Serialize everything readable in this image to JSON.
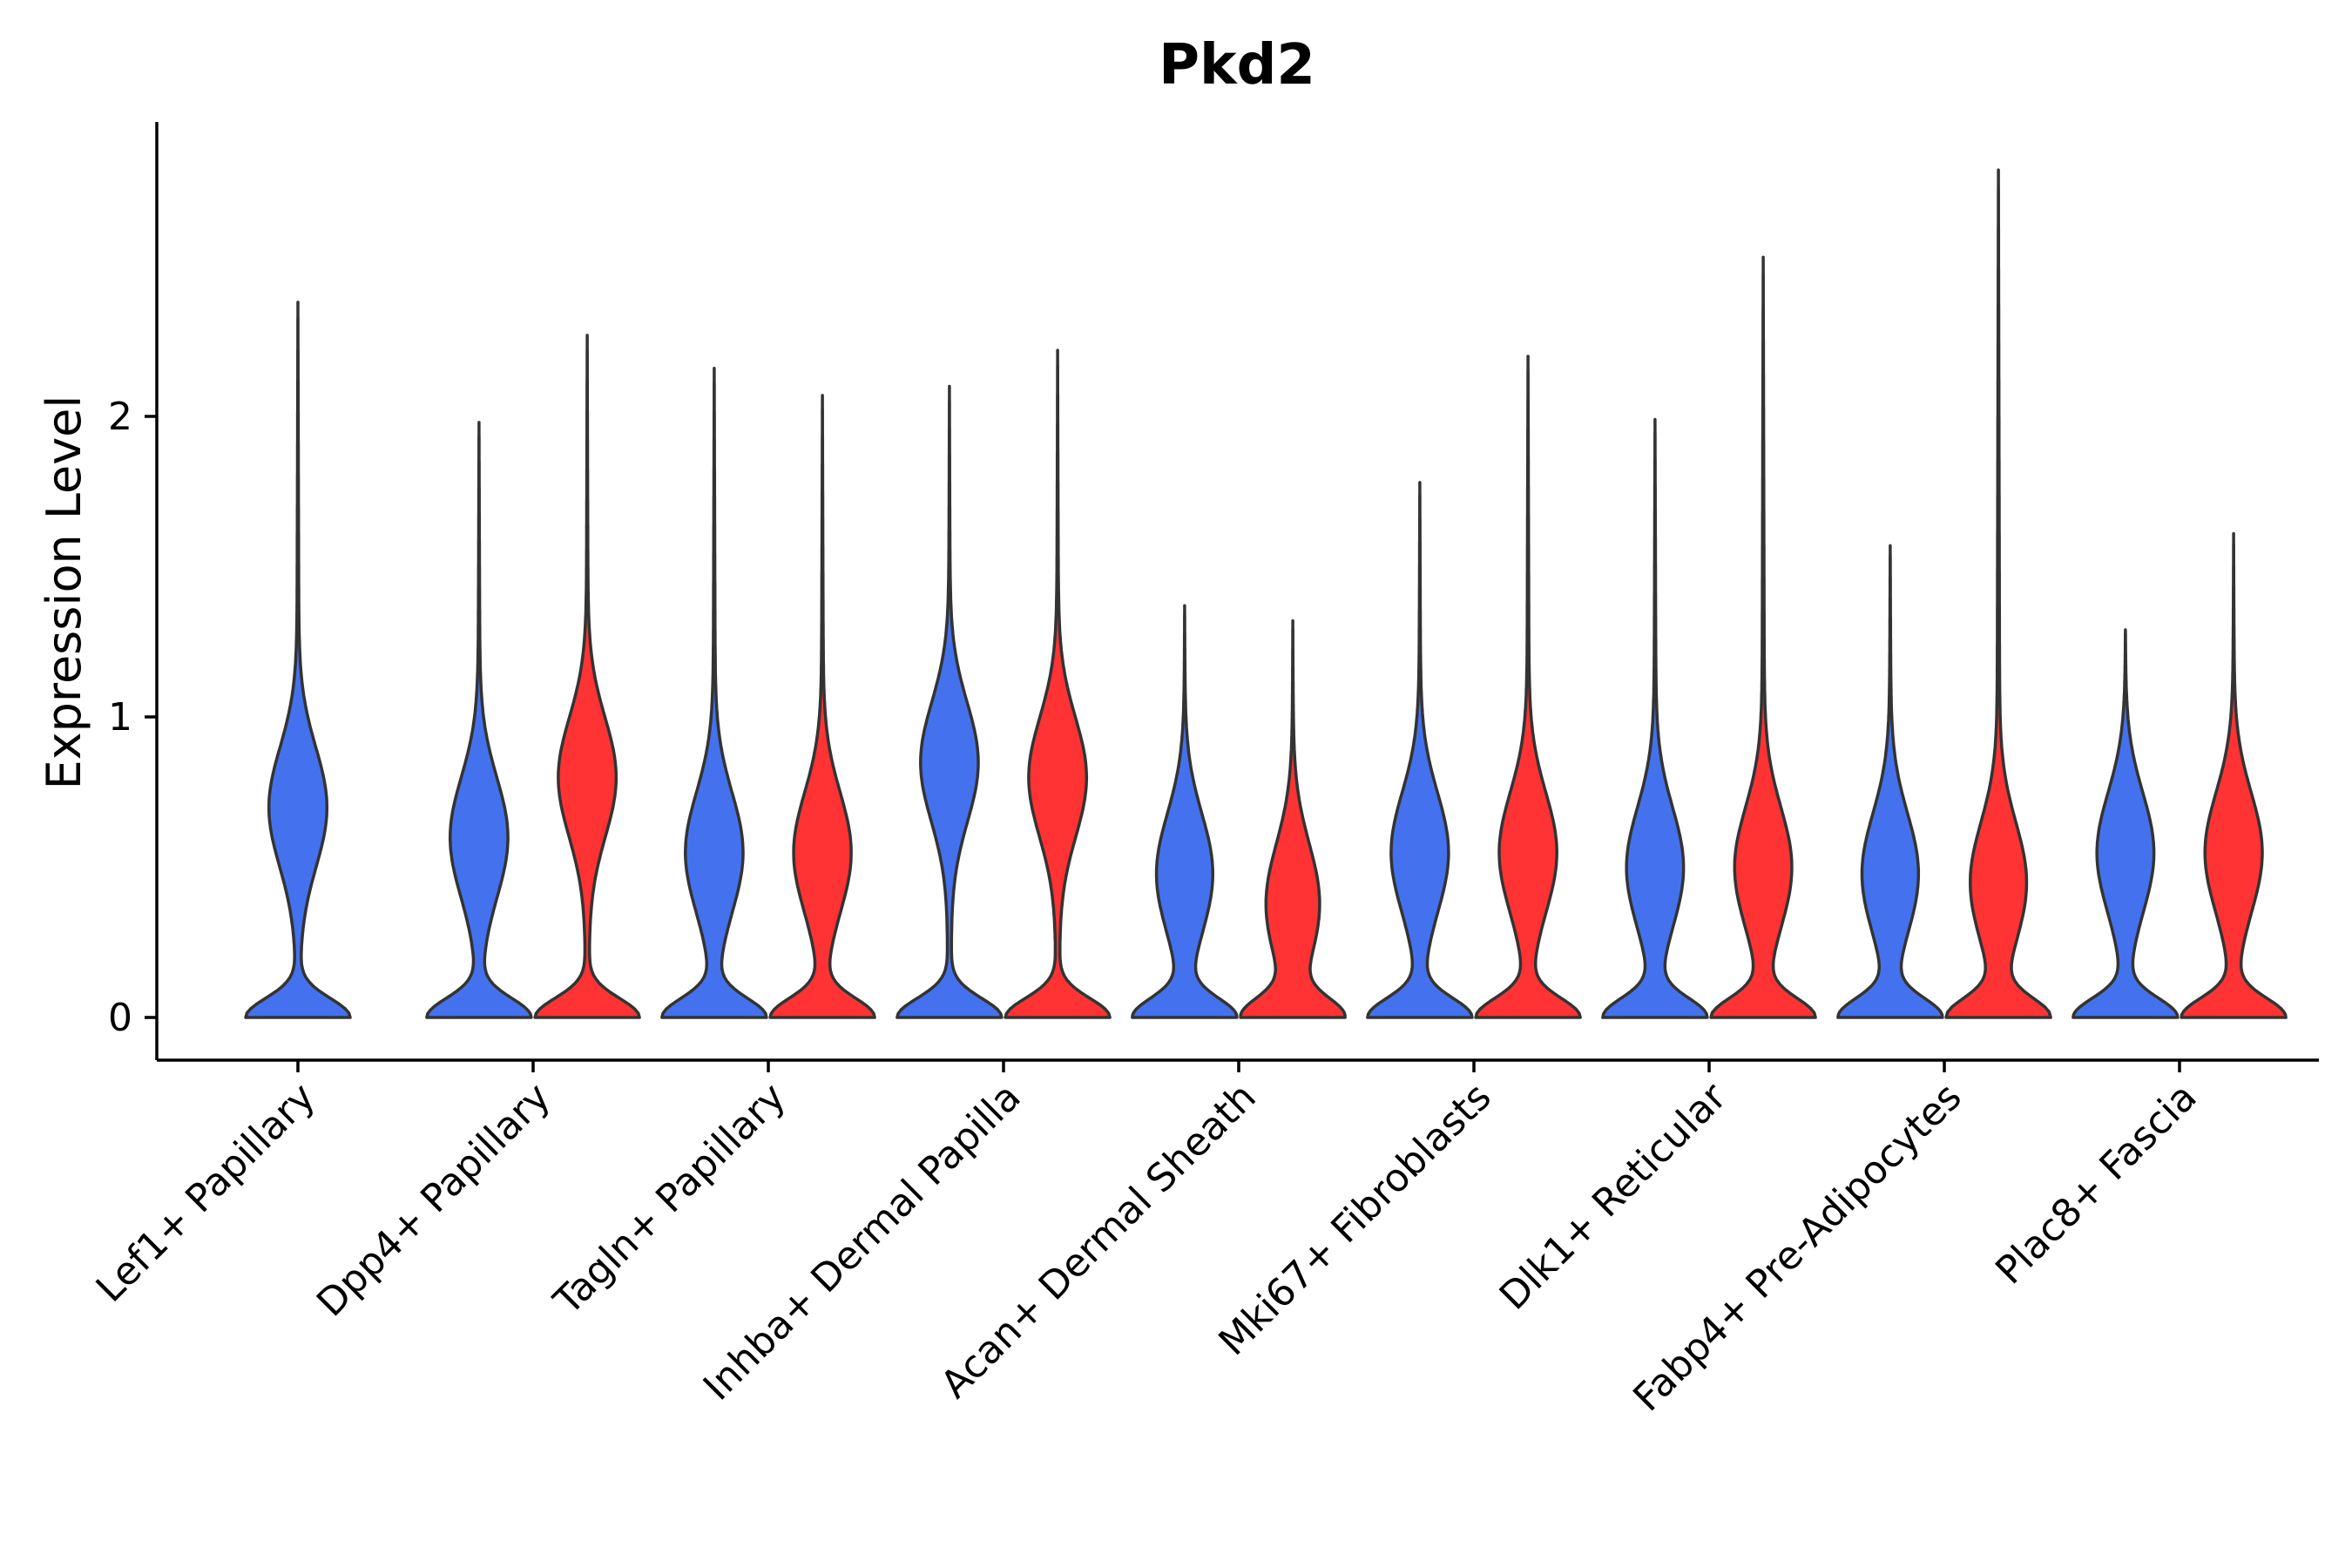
{
  "chart_data": {
    "type": "violin",
    "title": "Pkd2",
    "xlabel": "",
    "ylabel": "Expression Level",
    "ylim": [
      -0.14,
      2.95
    ],
    "yticks": [
      0,
      1,
      2
    ],
    "grid": false,
    "legend": "none",
    "categories": [
      "Lef1+ Papillary",
      "Dpp4+ Papillary",
      "Tagln+ Papillary",
      "Inhba+ Dermal Papilla",
      "Acan+ Dermal Sheath",
      "Mki67+ Fibroblasts",
      "Dlk1+ Reticular",
      "Fabp4+ Pre-Adipocytes",
      "Plac8+ Fascia"
    ],
    "series": [
      {
        "name": "group1",
        "color": "#4472EE",
        "max_values": [
          2.38,
          1.98,
          2.16,
          2.1,
          1.37,
          1.78,
          1.99,
          1.57,
          1.29
        ],
        "modes": [
          0.7,
          0.6,
          0.55,
          0.85,
          0.48,
          0.55,
          0.5,
          0.48,
          0.55
        ]
      },
      {
        "name": "group2",
        "color": "#FF3333",
        "max_values": [
          null,
          2.27,
          2.07,
          2.22,
          1.32,
          2.2,
          2.53,
          2.82,
          1.61
        ],
        "modes": [
          null,
          0.8,
          0.55,
          0.8,
          0.38,
          0.55,
          0.5,
          0.45,
          0.55
        ]
      }
    ]
  }
}
